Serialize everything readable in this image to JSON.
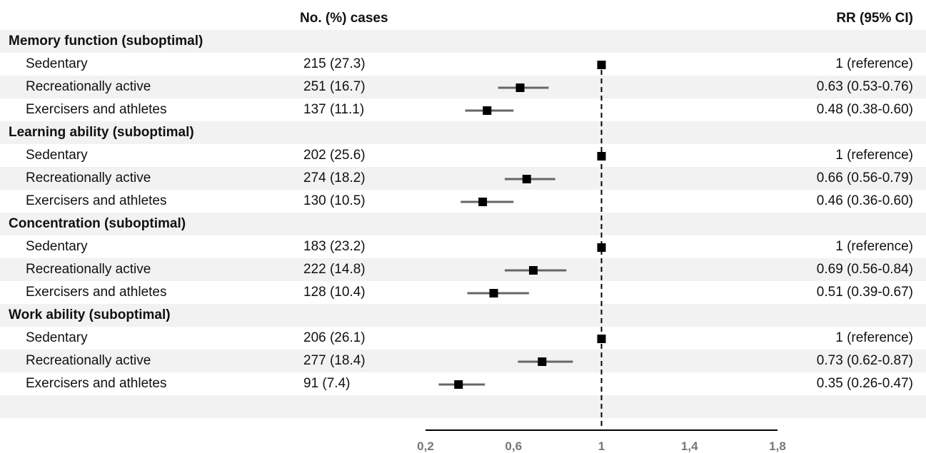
{
  "headers": {
    "cases": "No. (%) cases",
    "rr": "RR (95% CI)"
  },
  "chart_data": {
    "type": "forest",
    "xlim": [
      0.2,
      1.8
    ],
    "xticks": [
      0.2,
      0.6,
      1,
      1.4,
      1.8
    ],
    "xtick_labels": [
      "0,2",
      "0,6",
      "1",
      "1,4",
      "1,8"
    ],
    "reference_line": 1,
    "groups": [
      {
        "title": "Memory function (suboptimal)",
        "rows": [
          {
            "label": "Sedentary",
            "cases": "215 (27.3)",
            "rr_text": "1 (reference)",
            "rr": 1,
            "lo": 1,
            "hi": 1
          },
          {
            "label": "Recreationally active",
            "cases": "251 (16.7)",
            "rr_text": "0.63 (0.53-0.76)",
            "rr": 0.63,
            "lo": 0.53,
            "hi": 0.76
          },
          {
            "label": "Exercisers and athletes",
            "cases": "137 (11.1)",
            "rr_text": "0.48 (0.38-0.60)",
            "rr": 0.48,
            "lo": 0.38,
            "hi": 0.6
          }
        ]
      },
      {
        "title": "Learning ability (suboptimal)",
        "rows": [
          {
            "label": "Sedentary",
            "cases": "202 (25.6)",
            "rr_text": "1 (reference)",
            "rr": 1,
            "lo": 1,
            "hi": 1
          },
          {
            "label": "Recreationally active",
            "cases": "274 (18.2)",
            "rr_text": "0.66 (0.56-0.79)",
            "rr": 0.66,
            "lo": 0.56,
            "hi": 0.79
          },
          {
            "label": "Exercisers and athletes",
            "cases": "130 (10.5)",
            "rr_text": "0.46 (0.36-0.60)",
            "rr": 0.46,
            "lo": 0.36,
            "hi": 0.6
          }
        ]
      },
      {
        "title": "Concentration (suboptimal)",
        "rows": [
          {
            "label": "Sedentary",
            "cases": "183 (23.2)",
            "rr_text": "1 (reference)",
            "rr": 1,
            "lo": 1,
            "hi": 1
          },
          {
            "label": "Recreationally active",
            "cases": "222 (14.8)",
            "rr_text": "0.69 (0.56-0.84)",
            "rr": 0.69,
            "lo": 0.56,
            "hi": 0.84
          },
          {
            "label": "Exercisers and athletes",
            "cases": "128 (10.4)",
            "rr_text": "0.51 (0.39-0.67)",
            "rr": 0.51,
            "lo": 0.39,
            "hi": 0.67
          }
        ]
      },
      {
        "title": "Work ability (suboptimal)",
        "rows": [
          {
            "label": "Sedentary",
            "cases": "206 (26.1)",
            "rr_text": "1 (reference)",
            "rr": 1,
            "lo": 1,
            "hi": 1
          },
          {
            "label": "Recreationally active",
            "cases": "277 (18.4)",
            "rr_text": "0.73 (0.62-0.87)",
            "rr": 0.73,
            "lo": 0.62,
            "hi": 0.87
          },
          {
            "label": "Exercisers and athletes",
            "cases": "91 (7.4)",
            "rr_text": "0.35 (0.26-0.47)",
            "rr": 0.35,
            "lo": 0.26,
            "hi": 0.47
          }
        ]
      }
    ]
  }
}
